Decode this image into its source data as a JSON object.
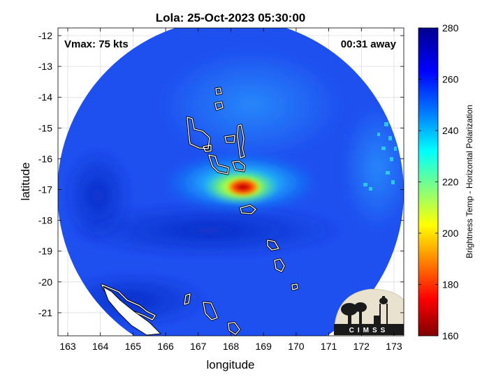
{
  "figure": {
    "title": "Lola: 25-Oct-2023 05:30:00",
    "vmax_label": "Vmax: 75 kts",
    "away_label": "00:31 away",
    "xlabel": "longitude",
    "ylabel": "latitude",
    "colorbar_label": "Brightness Temp - Horizontal Polarization",
    "logo_text": "CIMSS"
  },
  "chart_data": {
    "type": "heatmap",
    "title": "Lola: 25-Oct-2023 05:30:00",
    "xlabel": "longitude",
    "ylabel": "latitude",
    "xlim": [
      162.7,
      173.3
    ],
    "ylim": [
      -21.75,
      -11.75
    ],
    "x_ticks": [
      163,
      164,
      165,
      166,
      167,
      168,
      169,
      170,
      171,
      172,
      173
    ],
    "y_ticks": [
      -12,
      -13,
      -14,
      -15,
      -16,
      -17,
      -18,
      -19,
      -20,
      -21
    ],
    "grid": true,
    "colorbar": {
      "label": "Brightness Temp - Horizontal Polarization",
      "range": [
        160,
        280
      ],
      "ticks": [
        160,
        180,
        200,
        220,
        240,
        260,
        280
      ],
      "colormap": [
        "#7f0000",
        "#ff0000",
        "#ff8000",
        "#ffff00",
        "#80ff80",
        "#00ffff",
        "#0080ff",
        "#0000ff",
        "#00008f"
      ]
    },
    "swath": {
      "shape": "circle",
      "center_lon": 168.0,
      "center_lat": -16.7,
      "radius_deg": 5.3,
      "background_temp": 262
    },
    "cold_core": {
      "center_lon": 168.3,
      "center_lat": -17.0,
      "min_temp": 165
    },
    "annotations": [
      "Vmax: 75 kts",
      "00:31 away"
    ]
  }
}
